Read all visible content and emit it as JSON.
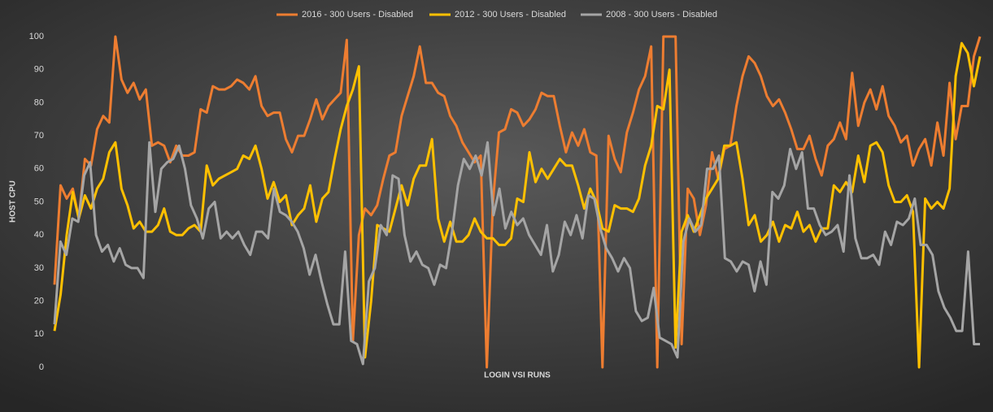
{
  "chart_data": {
    "type": "line",
    "xlabel": "LOGIN VSI RUNS",
    "ylabel": "HOST CPU",
    "ylim": [
      0,
      100
    ],
    "yticks": [
      0,
      10,
      20,
      30,
      40,
      50,
      60,
      70,
      80,
      90,
      100
    ],
    "grid": false,
    "legend": "top",
    "series": [
      {
        "name": "2016 - 300 Users - Disabled",
        "color": "#ed7d31",
        "values": [
          25,
          55,
          51,
          54,
          45,
          63,
          61,
          72,
          76,
          74,
          100,
          87,
          83,
          86,
          81,
          84,
          67,
          68,
          67,
          62,
          67,
          64,
          64,
          65,
          78,
          77,
          85,
          84,
          84,
          85,
          87,
          86,
          84,
          88,
          79,
          76,
          77,
          77,
          69,
          65,
          70,
          70,
          75,
          81,
          75,
          79,
          81,
          83,
          99,
          8,
          40,
          48,
          46,
          49,
          57,
          64,
          65,
          76,
          82,
          88,
          97,
          86,
          86,
          83,
          82,
          76,
          73,
          68,
          65,
          62,
          64,
          0,
          50,
          71,
          72,
          78,
          77,
          73,
          75,
          78,
          83,
          82,
          82,
          73,
          65,
          71,
          67,
          72,
          65,
          64,
          0,
          70,
          63,
          59,
          71,
          77,
          84,
          88,
          97,
          0,
          100,
          100,
          100,
          7,
          54,
          51,
          40,
          49,
          65,
          57,
          66,
          67,
          79,
          88,
          94,
          92,
          88,
          82,
          79,
          81,
          77,
          72,
          66,
          66,
          70,
          63,
          58,
          67,
          69,
          74,
          69,
          89,
          73,
          80,
          84,
          78,
          85,
          76,
          73,
          68,
          70,
          61,
          66,
          69,
          61,
          74,
          64,
          86,
          69,
          79,
          79,
          94,
          100
        ]
      },
      {
        "name": "2012 - 300 Users - Disabled",
        "color": "#ffc000",
        "values": [
          11,
          22,
          40,
          53,
          45,
          52,
          48,
          54,
          57,
          65,
          68,
          54,
          49,
          42,
          44,
          41,
          41,
          43,
          48,
          41,
          40,
          40,
          42,
          43,
          41,
          61,
          55,
          57,
          58,
          59,
          60,
          64,
          63,
          67,
          60,
          51,
          56,
          50,
          52,
          43,
          46,
          48,
          55,
          44,
          51,
          53,
          63,
          72,
          79,
          84,
          91,
          3,
          20,
          43,
          42,
          41,
          48,
          55,
          49,
          57,
          61,
          61,
          69,
          45,
          38,
          44,
          38,
          38,
          40,
          45,
          41,
          39,
          39,
          37,
          37,
          39,
          51,
          50,
          65,
          56,
          60,
          57,
          60,
          63,
          61,
          61,
          55,
          48,
          54,
          50,
          42,
          41,
          49,
          48,
          48,
          47,
          51,
          61,
          67,
          79,
          78,
          90,
          6,
          41,
          46,
          41,
          46,
          51,
          54,
          57,
          67,
          67,
          68,
          57,
          43,
          46,
          38,
          40,
          44,
          38,
          43,
          42,
          47,
          41,
          43,
          38,
          42,
          42,
          55,
          53,
          56,
          53,
          64,
          56,
          67,
          68,
          65,
          55,
          50,
          50,
          52,
          47,
          0,
          51,
          48,
          50,
          48,
          54,
          88,
          98,
          95,
          85,
          94
        ]
      },
      {
        "name": "2008 - 300 Users - Disabled",
        "color": "#a5a5a5",
        "values": [
          13,
          38,
          34,
          45,
          44,
          58,
          62,
          40,
          35,
          37,
          32,
          36,
          31,
          30,
          30,
          27,
          68,
          47,
          60,
          62,
          63,
          67,
          60,
          49,
          45,
          39,
          48,
          50,
          39,
          41,
          39,
          41,
          37,
          34,
          41,
          41,
          39,
          54,
          47,
          46,
          44,
          41,
          36,
          28,
          34,
          26,
          19,
          13,
          13,
          35,
          8,
          7,
          1,
          26,
          30,
          43,
          40,
          58,
          57,
          40,
          32,
          35,
          31,
          30,
          25,
          31,
          30,
          41,
          55,
          63,
          60,
          64,
          58,
          68,
          46,
          54,
          42,
          47,
          43,
          45,
          40,
          37,
          34,
          43,
          29,
          34,
          44,
          40,
          46,
          39,
          52,
          51,
          42,
          36,
          33,
          29,
          33,
          30,
          17,
          14,
          15,
          24,
          9,
          8,
          7,
          3,
          38,
          45,
          41,
          43,
          60,
          60,
          64,
          33,
          32,
          29,
          32,
          31,
          23,
          32,
          25,
          53,
          51,
          55,
          66,
          60,
          65,
          48,
          48,
          43,
          40,
          41,
          43,
          35,
          58,
          39,
          33,
          33,
          34,
          31,
          41,
          37,
          44,
          43,
          45,
          51,
          37,
          37,
          34,
          23,
          18,
          15,
          11,
          11,
          35,
          7,
          7
        ]
      }
    ]
  }
}
